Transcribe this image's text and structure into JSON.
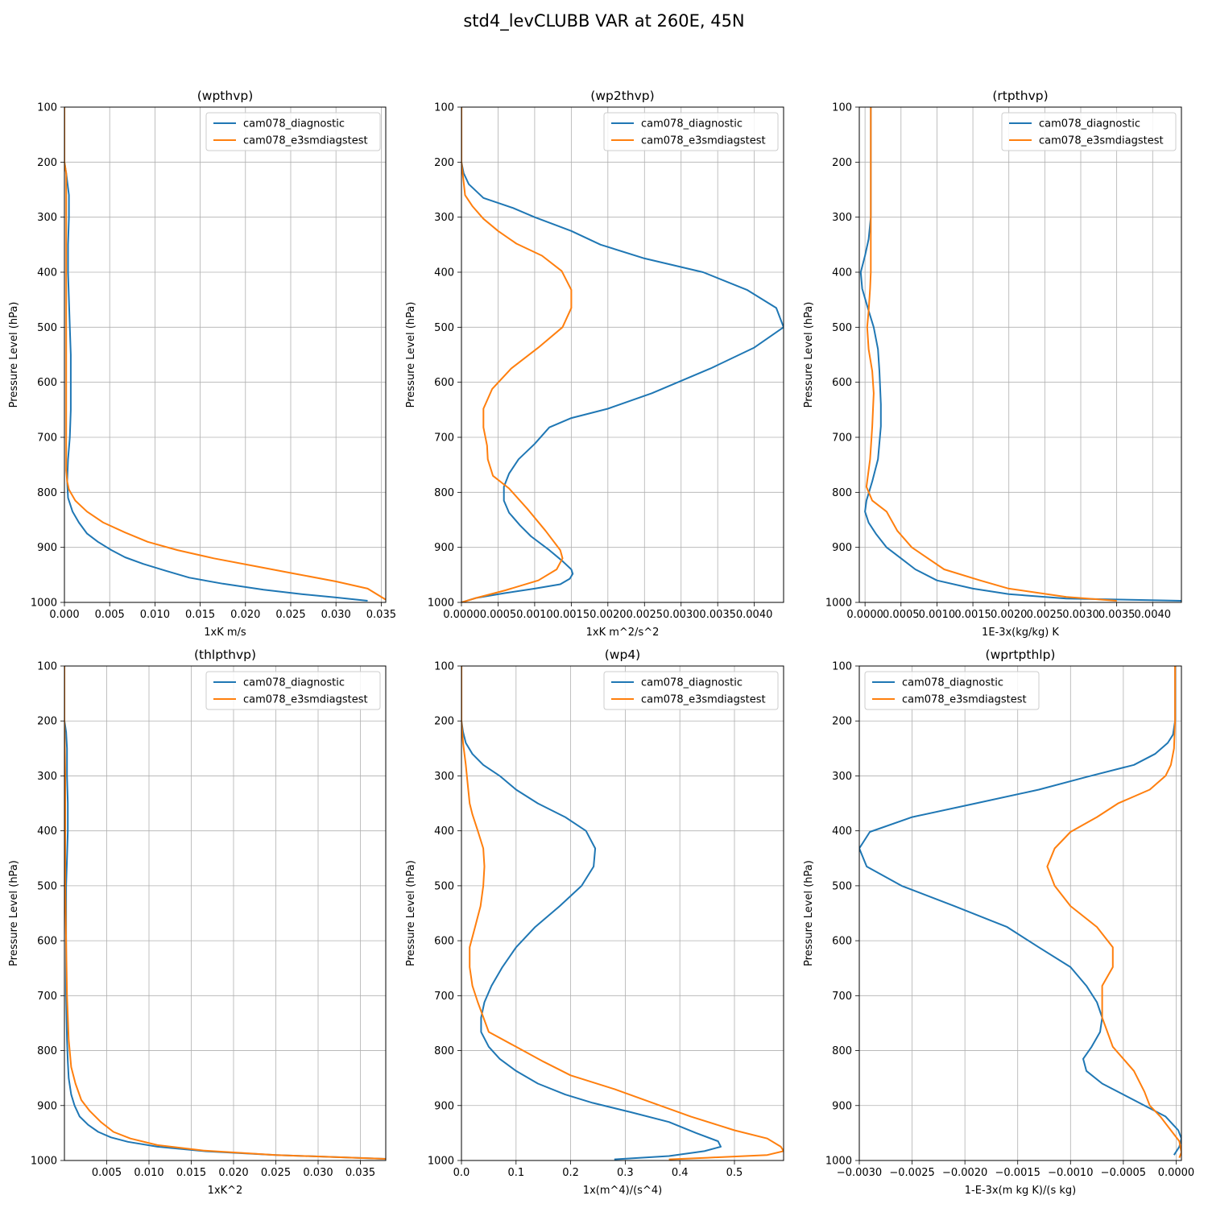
{
  "figure": {
    "title": "std4_levCLUBB VAR at 260E, 45N"
  },
  "colors": {
    "diagnostic": "#1f77b4",
    "e3smdiagstest": "#ff7f0e",
    "grid": "#b0b0b0"
  },
  "chart_data": [
    {
      "type": "line",
      "title": "(wpthvp)",
      "xlabel": "1xK m/s",
      "ylabel": "Pressure Level (hPa)",
      "xlim": [
        0,
        0.0355
      ],
      "ylim": [
        1000,
        100
      ],
      "grid": true,
      "legend": "top-right",
      "xticks": [
        0,
        0.005,
        0.01,
        0.015,
        0.02,
        0.025,
        0.03,
        0.035
      ],
      "xtick_labels": [
        "0.000",
        "0.005",
        "0.010",
        "0.015",
        "0.020",
        "0.025",
        "0.030",
        "0.035"
      ],
      "yticks": [
        100,
        200,
        300,
        400,
        500,
        600,
        700,
        800,
        900,
        1000
      ],
      "ytick_labels": [
        "100",
        "200",
        "300",
        "400",
        "500",
        "600",
        "700",
        "800",
        "900",
        "1000"
      ],
      "series": [
        {
          "name": "cam078_diagnostic",
          "x": [
            0,
            0,
            0.0002,
            0.0005,
            0.0005,
            0.0004,
            0.0004,
            0.0005,
            0.0006,
            0.0007,
            0.0007,
            0.0007,
            0.0006,
            0.0004,
            0.0003,
            0.0004,
            0.0009,
            0.0016,
            0.0025,
            0.0037,
            0.0052,
            0.0067,
            0.0087,
            0.0111,
            0.0138,
            0.0175,
            0.022,
            0.0262,
            0.03,
            0.0335
          ],
          "y": [
            100,
            200,
            220,
            260,
            300,
            350,
            400,
            450,
            500,
            550,
            600,
            650,
            700,
            740,
            780,
            810,
            835,
            855,
            875,
            890,
            905,
            918,
            930,
            942,
            955,
            966,
            977,
            985,
            991,
            997
          ]
        },
        {
          "name": "cam078_e3smdiagstest",
          "x": [
            0,
            0,
            0.0002,
            0.0002,
            0.0002,
            0.0002,
            0.0002,
            0.0002,
            0.0002,
            0.0002,
            0.0003,
            0.0005,
            0.0012,
            0.0025,
            0.0043,
            0.0067,
            0.0092,
            0.0125,
            0.0165,
            0.021,
            0.0255,
            0.03,
            0.0335,
            0.0355
          ],
          "y": [
            100,
            200,
            220,
            300,
            400,
            500,
            600,
            700,
            740,
            760,
            780,
            795,
            815,
            835,
            855,
            873,
            890,
            905,
            920,
            934,
            948,
            962,
            975,
            995
          ]
        }
      ]
    },
    {
      "type": "line",
      "title": "(wp2thvp)",
      "xlabel": "1xK m^2/s^2",
      "ylabel": "Pressure Level (hPa)",
      "xlim": [
        0,
        0.0044
      ],
      "ylim": [
        1000,
        100
      ],
      "grid": true,
      "legend": "top-right",
      "xticks": [
        0,
        0.0005,
        0.001,
        0.0015,
        0.002,
        0.0025,
        0.003,
        0.0035,
        0.004
      ],
      "xtick_labels": [
        "0.0000",
        "0.0005",
        "0.0010",
        "0.0015",
        "0.0020",
        "0.0025",
        "0.0030",
        "0.0035",
        "0.0040"
      ],
      "yticks": [
        100,
        200,
        300,
        400,
        500,
        600,
        700,
        800,
        900,
        1000
      ],
      "ytick_labels": [
        "100",
        "200",
        "300",
        "400",
        "500",
        "600",
        "700",
        "800",
        "900",
        "1000"
      ],
      "series": [
        {
          "name": "cam078_diagnostic",
          "x": [
            0,
            0,
            3e-05,
            0.0001,
            0.0003,
            0.0007,
            0.001,
            0.0013,
            0.0015,
            0.0019,
            0.0025,
            0.0033,
            0.0039,
            0.0043,
            0.0044,
            0.004,
            0.0034,
            0.0026,
            0.002,
            0.0015,
            0.0012,
            0.001,
            0.00078,
            0.00065,
            0.00058,
            0.00058,
            0.00065,
            0.0008,
            0.00095,
            0.0012,
            0.00138,
            0.0015,
            0.00152,
            0.00148,
            0.00135,
            0.001,
            0.0006,
            0.0002,
            0
          ],
          "y": [
            100,
            200,
            220,
            240,
            265,
            283,
            300,
            315,
            325,
            350,
            375,
            400,
            432,
            465,
            500,
            537,
            575,
            620,
            648,
            665,
            682,
            712,
            740,
            766,
            790,
            815,
            837,
            860,
            880,
            905,
            925,
            940,
            948,
            957,
            967,
            975,
            983,
            992,
            1000
          ]
        },
        {
          "name": "cam078_e3smdiagstest",
          "x": [
            0,
            0,
            5e-05,
            0.00015,
            0.0003,
            0.0005,
            0.00075,
            0.0011,
            0.00137,
            0.0015,
            0.0015,
            0.00138,
            0.00105,
            0.00068,
            0.00042,
            0.0003,
            0.0003,
            0.00035,
            0.00036,
            0.00043,
            0.00065,
            0.0009,
            0.00115,
            0.00135,
            0.00138,
            0.0013,
            0.00105,
            0.0006,
            0.0002,
            0
          ],
          "y": [
            100,
            200,
            260,
            280,
            303,
            325,
            348,
            370,
            398,
            432,
            465,
            500,
            537,
            575,
            612,
            648,
            682,
            715,
            740,
            770,
            793,
            830,
            870,
            905,
            920,
            940,
            960,
            978,
            992,
            1000
          ]
        }
      ]
    },
    {
      "type": "line",
      "title": "(rtpthvp)",
      "xlabel": "1E-3x(kg/kg) K",
      "ylabel": "Pressure Level (hPa)",
      "xlim": [
        -8e-05,
        0.0044
      ],
      "ylim": [
        1000,
        100
      ],
      "grid": true,
      "legend": "top-right",
      "xticks": [
        0,
        0.0005,
        0.001,
        0.0015,
        0.002,
        0.0025,
        0.003,
        0.0035,
        0.004
      ],
      "xtick_labels": [
        "0.0000",
        "0.0005",
        "0.0010",
        "0.0015",
        "0.0020",
        "0.0025",
        "0.0030",
        "0.0035",
        "0.0040"
      ],
      "yticks": [
        100,
        200,
        300,
        400,
        500,
        600,
        700,
        800,
        900,
        1000
      ],
      "ytick_labels": [
        "100",
        "200",
        "300",
        "400",
        "500",
        "600",
        "700",
        "800",
        "900",
        "1000"
      ],
      "series": [
        {
          "name": "cam078_diagnostic",
          "x": [
            8e-05,
            8e-05,
            8e-05,
            5e-05,
            0,
            -6e-05,
            -4e-05,
            5e-05,
            0.00012,
            0.00018,
            0.0002,
            0.00022,
            0.00022,
            0.00018,
            0.0001,
            2e-05,
            0,
            5e-05,
            0.00015,
            0.0003,
            0.0005,
            0.0007,
            0.001,
            0.0015,
            0.002,
            0.0028,
            0.0044
          ],
          "y": [
            100,
            200,
            300,
            340,
            370,
            400,
            430,
            470,
            500,
            540,
            580,
            640,
            680,
            740,
            780,
            815,
            835,
            855,
            875,
            900,
            920,
            940,
            960,
            975,
            985,
            993,
            997
          ]
        },
        {
          "name": "cam078_e3smdiagstest",
          "x": [
            8e-05,
            8e-05,
            8e-05,
            8e-05,
            7e-05,
            5e-05,
            3e-05,
            5e-05,
            0.0001,
            0.00012,
            0.0001,
            7e-05,
            4e-05,
            2e-05,
            0.0001,
            0.0003,
            0.00045,
            0.00065,
            0.0011,
            0.0016,
            0.002,
            0.0028,
            0.0035
          ],
          "y": [
            100,
            200,
            300,
            400,
            430,
            470,
            500,
            540,
            580,
            620,
            680,
            740,
            770,
            790,
            815,
            835,
            870,
            900,
            940,
            960,
            975,
            990,
            997
          ]
        }
      ]
    },
    {
      "type": "line",
      "title": "(thlpthvp)",
      "xlabel": "1xK^2",
      "ylabel": "Pressure Level (hPa)",
      "xlim": [
        0,
        0.038
      ],
      "ylim": [
        1000,
        100
      ],
      "grid": true,
      "legend": "top-right",
      "xticks": [
        0.005,
        0.01,
        0.015,
        0.02,
        0.025,
        0.03,
        0.035
      ],
      "xtick_labels": [
        "0.005",
        "0.010",
        "0.015",
        "0.020",
        "0.025",
        "0.030",
        "0.035"
      ],
      "yticks": [
        100,
        200,
        300,
        400,
        500,
        600,
        700,
        800,
        900,
        1000
      ],
      "ytick_labels": [
        "100",
        "200",
        "300",
        "400",
        "500",
        "600",
        "700",
        "800",
        "900",
        "1000"
      ],
      "series": [
        {
          "name": "cam078_diagnostic",
          "x": [
            0,
            0,
            0.0002,
            0.0003,
            0.0003,
            0.0004,
            0.0004,
            0.0003,
            0.0002,
            0.0002,
            0.0002,
            0.0003,
            0.0004,
            0.0005,
            0.0008,
            0.0012,
            0.0018,
            0.0028,
            0.004,
            0.0055,
            0.0075,
            0.011,
            0.0165,
            0.025,
            0.038
          ],
          "y": [
            100,
            200,
            220,
            250,
            300,
            350,
            400,
            450,
            500,
            600,
            700,
            780,
            820,
            850,
            880,
            900,
            920,
            935,
            948,
            958,
            966,
            975,
            983,
            990,
            997
          ]
        },
        {
          "name": "cam078_e3smdiagstest",
          "x": [
            0,
            0,
            0.0001,
            0.0001,
            0.0001,
            0.0002,
            0.0003,
            0.0005,
            0.0008,
            0.0013,
            0.002,
            0.003,
            0.0043,
            0.0058,
            0.0078,
            0.011,
            0.0165,
            0.025,
            0.038
          ],
          "y": [
            100,
            200,
            300,
            400,
            500,
            600,
            700,
            780,
            830,
            860,
            890,
            910,
            930,
            948,
            960,
            972,
            982,
            990,
            997
          ]
        }
      ]
    },
    {
      "type": "line",
      "title": "(wp4)",
      "xlabel": "1x(m^4)/(s^4)",
      "ylabel": "Pressure Level (hPa)",
      "xlim": [
        0,
        0.59
      ],
      "ylim": [
        1000,
        100
      ],
      "grid": true,
      "legend": "top-right",
      "xticks": [
        0,
        0.1,
        0.2,
        0.3,
        0.4,
        0.5
      ],
      "xtick_labels": [
        "0.0",
        "0.1",
        "0.2",
        "0.3",
        "0.4",
        "0.5"
      ],
      "yticks": [
        100,
        200,
        300,
        400,
        500,
        600,
        700,
        800,
        900,
        1000
      ],
      "ytick_labels": [
        "100",
        "200",
        "300",
        "400",
        "500",
        "600",
        "700",
        "800",
        "900",
        "1000"
      ],
      "series": [
        {
          "name": "cam078_diagnostic",
          "x": [
            0,
            0,
            0.003,
            0.008,
            0.02,
            0.04,
            0.07,
            0.1,
            0.14,
            0.19,
            0.228,
            0.245,
            0.242,
            0.22,
            0.18,
            0.135,
            0.1,
            0.075,
            0.055,
            0.042,
            0.036,
            0.036,
            0.05,
            0.07,
            0.1,
            0.14,
            0.19,
            0.24,
            0.31,
            0.38,
            0.43,
            0.47,
            0.475,
            0.445,
            0.38,
            0.28
          ],
          "y": [
            100,
            200,
            220,
            240,
            260,
            280,
            300,
            325,
            350,
            375,
            400,
            432,
            465,
            500,
            537,
            575,
            612,
            648,
            682,
            712,
            740,
            766,
            793,
            815,
            837,
            860,
            880,
            895,
            912,
            930,
            950,
            965,
            975,
            983,
            992,
            998
          ]
        },
        {
          "name": "cam078_e3smdiagstest",
          "x": [
            0,
            0,
            0.003,
            0.008,
            0.012,
            0.015,
            0.02,
            0.03,
            0.04,
            0.042,
            0.04,
            0.035,
            0.025,
            0.015,
            0.015,
            0.02,
            0.03,
            0.05,
            0.1,
            0.15,
            0.2,
            0.28,
            0.35,
            0.42,
            0.5,
            0.56,
            0.585,
            0.59,
            0.56,
            0.45,
            0.38
          ],
          "y": [
            100,
            200,
            240,
            280,
            320,
            350,
            370,
            400,
            432,
            465,
            500,
            537,
            575,
            612,
            648,
            682,
            712,
            766,
            793,
            820,
            845,
            870,
            895,
            920,
            945,
            960,
            975,
            983,
            990,
            995,
            998
          ]
        }
      ]
    },
    {
      "type": "line",
      "title": "(wprtpthlp)",
      "xlabel": "1-E-3x(m kg K)/(s kg)",
      "ylabel": "Pressure Level (hPa)",
      "xlim": [
        -0.003,
        5e-05
      ],
      "ylim": [
        1000,
        100
      ],
      "grid": true,
      "legend": "top-left",
      "xticks": [
        -0.003,
        -0.0025,
        -0.002,
        -0.0015,
        -0.001,
        -0.0005,
        0
      ],
      "xtick_labels": [
        "−0.0030",
        "−0.0025",
        "−0.0020",
        "−0.0015",
        "−0.0010",
        "−0.0005",
        "0.0000"
      ],
      "yticks": [
        100,
        200,
        300,
        400,
        500,
        600,
        700,
        800,
        900,
        1000
      ],
      "ytick_labels": [
        "100",
        "200",
        "300",
        "400",
        "500",
        "600",
        "700",
        "800",
        "900",
        "1000"
      ],
      "series": [
        {
          "name": "cam078_diagnostic",
          "x": [
            -1e-05,
            -1e-05,
            -3e-05,
            -8e-05,
            -0.0002,
            -0.0004,
            -0.00085,
            -0.0013,
            -0.0019,
            -0.0025,
            -0.0029,
            -0.003,
            -0.00293,
            -0.0026,
            -0.0021,
            -0.0016,
            -0.0013,
            -0.001,
            -0.00085,
            -0.00075,
            -0.0007,
            -0.00072,
            -0.0008,
            -0.00088,
            -0.00085,
            -0.0007,
            -0.0005,
            -0.0003,
            -0.0001,
            2e-05,
            5e-05,
            3e-05,
            -2e-05
          ],
          "y": [
            100,
            200,
            225,
            240,
            260,
            280,
            302,
            325,
            350,
            375,
            402,
            432,
            465,
            500,
            537,
            575,
            612,
            648,
            682,
            712,
            740,
            766,
            793,
            815,
            837,
            860,
            880,
            900,
            920,
            945,
            960,
            975,
            990
          ]
        },
        {
          "name": "cam078_e3smdiagstest",
          "x": [
            -1e-05,
            -1e-05,
            -2e-05,
            -5e-05,
            -0.0001,
            -0.00025,
            -0.00055,
            -0.00075,
            -0.001,
            -0.00115,
            -0.00122,
            -0.00115,
            -0.001,
            -0.00075,
            -0.0006,
            -0.0006,
            -0.0007,
            -0.0007,
            -0.0006,
            -0.0004,
            -0.0003,
            -0.00025,
            -0.00015,
            -5e-05,
            3e-05,
            5e-05,
            3e-05
          ],
          "y": [
            100,
            200,
            250,
            280,
            300,
            325,
            350,
            375,
            402,
            432,
            465,
            500,
            537,
            575,
            612,
            648,
            682,
            740,
            793,
            837,
            875,
            900,
            920,
            945,
            965,
            985,
            995
          ]
        }
      ]
    }
  ]
}
